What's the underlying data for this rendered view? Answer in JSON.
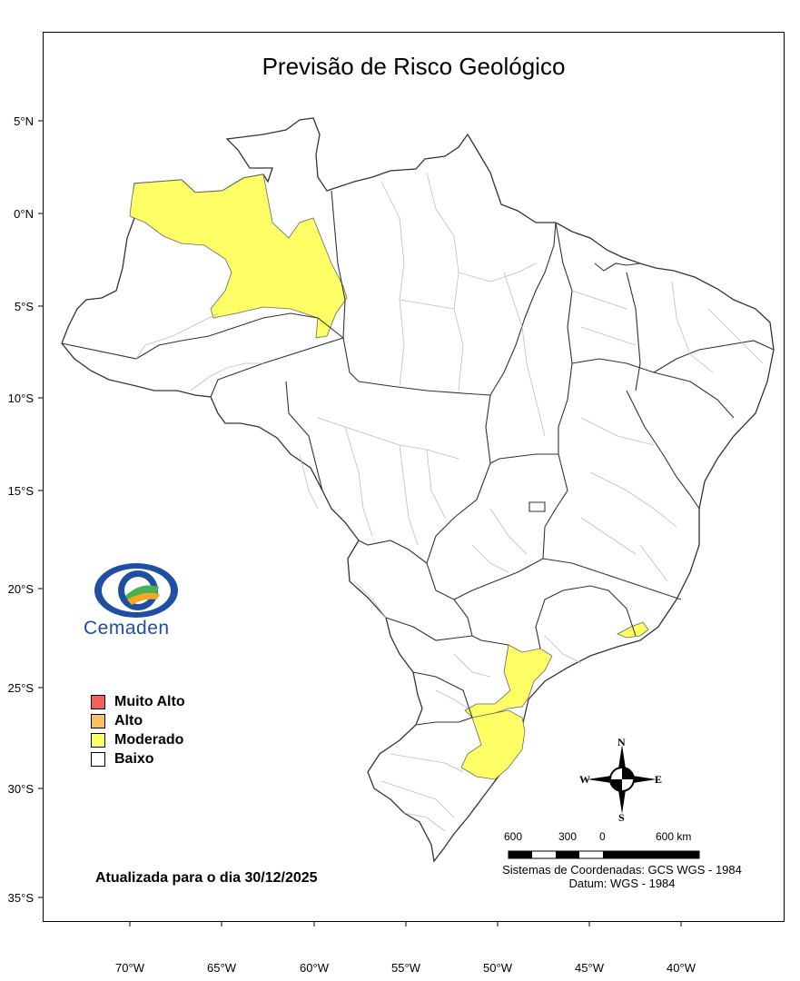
{
  "map": {
    "title": "Previsão de Risco Geológico",
    "latitude_ticks": [
      "5°N",
      "0°N",
      "5°S",
      "10°S",
      "15°S",
      "20°S",
      "25°S",
      "30°S",
      "35°S"
    ],
    "longitude_ticks": [
      "70°W",
      "65°W",
      "60°W",
      "55°W",
      "50°W",
      "45°W",
      "40°W"
    ],
    "risk_colors": {
      "muito_alto": "#f2615e",
      "alto": "#f8c05f",
      "moderado": "#ffff66",
      "baixo": "#ffffff"
    },
    "moderate_risk_areas": [
      "Amazonas (noroeste)",
      "Rio de Janeiro (litoral)",
      "Paraná (leste)",
      "Santa Catarina (leste)"
    ]
  },
  "logo": {
    "text": "Cemaden",
    "colors": {
      "primary": "#1f4fa0",
      "green": "#4caf50",
      "orange": "#f5a623"
    }
  },
  "legend": {
    "items": [
      {
        "label": "Muito Alto",
        "color": "#f2615e"
      },
      {
        "label": "Alto",
        "color": "#f8c05f"
      },
      {
        "label": "Moderado",
        "color": "#ffff66"
      },
      {
        "label": "Baixo",
        "color": "#ffffff"
      }
    ]
  },
  "updated_text": "Atualizada para o dia 30/12/2025",
  "compass": {
    "n": "N",
    "s": "S",
    "e": "E",
    "w": "W"
  },
  "scale": {
    "labels": [
      "600",
      "300",
      "0",
      "600 km"
    ]
  },
  "credits": {
    "line1": "Sistemas de Coordenadas: GCS WGS - 1984",
    "line2": "Datum: WGS - 1984"
  }
}
